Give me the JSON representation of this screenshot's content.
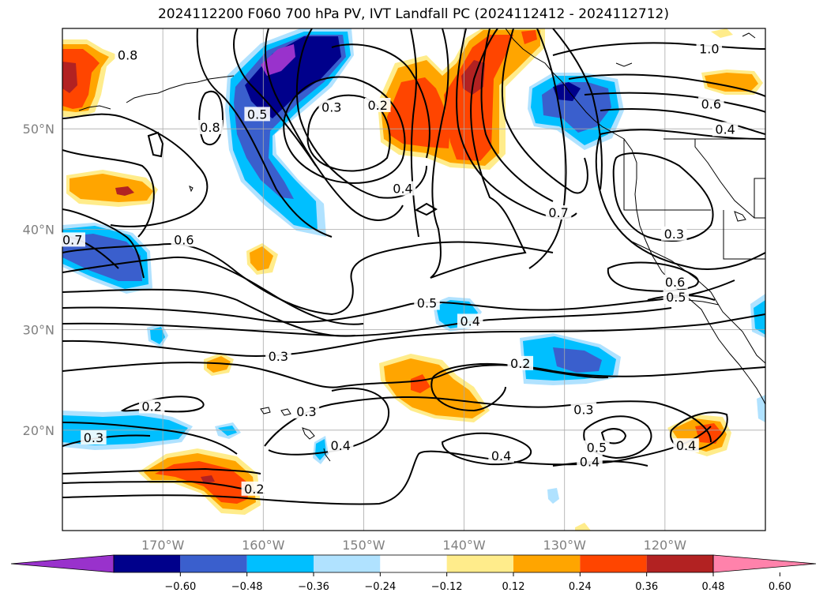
{
  "title": "2024112200 F060 700 hPa PV, IVT Landfall PC (2024112412 - 2024112712)",
  "map": {
    "projection": "PlateCarree",
    "lon_range": [
      -180,
      -110
    ],
    "lat_range": [
      10,
      60
    ],
    "lat_ticks": [
      {
        "lat": 50,
        "label": "50°N"
      },
      {
        "lat": 40,
        "label": "40°N"
      },
      {
        "lat": 30,
        "label": "30°N"
      },
      {
        "lat": 20,
        "label": "20°N"
      }
    ],
    "lon_ticks": [
      {
        "lon": -170,
        "label": "170°W"
      },
      {
        "lon": -160,
        "label": "160°W"
      },
      {
        "lon": -150,
        "label": "150°W"
      },
      {
        "lon": -140,
        "label": "140°W"
      },
      {
        "lon": -130,
        "label": "130°W"
      },
      {
        "lon": -120,
        "label": "120°W"
      }
    ],
    "gridlines": true
  },
  "contour_labels": [
    {
      "lon": -179,
      "lat": 38.9,
      "text": "0.7"
    },
    {
      "lon": -173.5,
      "lat": 57.3,
      "text": "0.8"
    },
    {
      "lon": -165.3,
      "lat": 50.1,
      "text": "0.8"
    },
    {
      "lon": -167.9,
      "lat": 38.9,
      "text": "0.6"
    },
    {
      "lon": -160.6,
      "lat": 51.4,
      "text": "0.5"
    },
    {
      "lon": -153.2,
      "lat": 52.1,
      "text": "0.3"
    },
    {
      "lon": -148.6,
      "lat": 52.3,
      "text": "0.2"
    },
    {
      "lon": -146.1,
      "lat": 44.0,
      "text": "0.4"
    },
    {
      "lon": -115.6,
      "lat": 57.9,
      "text": "1.0"
    },
    {
      "lon": -115.4,
      "lat": 52.4,
      "text": "0.6"
    },
    {
      "lon": -114.0,
      "lat": 49.9,
      "text": "0.4"
    },
    {
      "lon": -130.6,
      "lat": 41.6,
      "text": "0.7"
    },
    {
      "lon": -119.1,
      "lat": 39.5,
      "text": "0.3"
    },
    {
      "lon": -119.0,
      "lat": 34.7,
      "text": "0.6"
    },
    {
      "lon": -118.9,
      "lat": 33.2,
      "text": "0.5"
    },
    {
      "lon": -143.7,
      "lat": 32.6,
      "text": "0.5"
    },
    {
      "lon": -139.4,
      "lat": 30.8,
      "text": "0.4"
    },
    {
      "lon": -158.5,
      "lat": 27.3,
      "text": "0.3"
    },
    {
      "lon": -134.4,
      "lat": 26.6,
      "text": "0.2"
    },
    {
      "lon": -171.1,
      "lat": 22.3,
      "text": "0.2"
    },
    {
      "lon": -176.9,
      "lat": 19.2,
      "text": "0.3"
    },
    {
      "lon": -155.7,
      "lat": 21.8,
      "text": "0.3"
    },
    {
      "lon": -152.3,
      "lat": 18.4,
      "text": "0.4"
    },
    {
      "lon": -128.1,
      "lat": 22.0,
      "text": "0.3"
    },
    {
      "lon": -136.3,
      "lat": 17.4,
      "text": "0.4"
    },
    {
      "lon": -126.8,
      "lat": 18.2,
      "text": "0.5"
    },
    {
      "lon": -127.5,
      "lat": 16.8,
      "text": "0.4"
    },
    {
      "lon": -117.9,
      "lat": 18.4,
      "text": "0.4"
    },
    {
      "lon": -160.9,
      "lat": 14.1,
      "text": "0.2"
    }
  ],
  "colorbar": {
    "tick_labels": [
      "−0.60",
      "−0.48",
      "−0.36",
      "−0.24",
      "−0.12",
      "0.12",
      "0.24",
      "0.36",
      "0.48",
      "0.60"
    ],
    "colors": [
      "#9932cc",
      "#00008b",
      "#3a5fcd",
      "#00bfff",
      "#b0e2ff",
      "#ffffff",
      "#ffec8b",
      "#ffa500",
      "#ff4500",
      "#b22222",
      "#ff82ab"
    ],
    "extend": "both"
  }
}
